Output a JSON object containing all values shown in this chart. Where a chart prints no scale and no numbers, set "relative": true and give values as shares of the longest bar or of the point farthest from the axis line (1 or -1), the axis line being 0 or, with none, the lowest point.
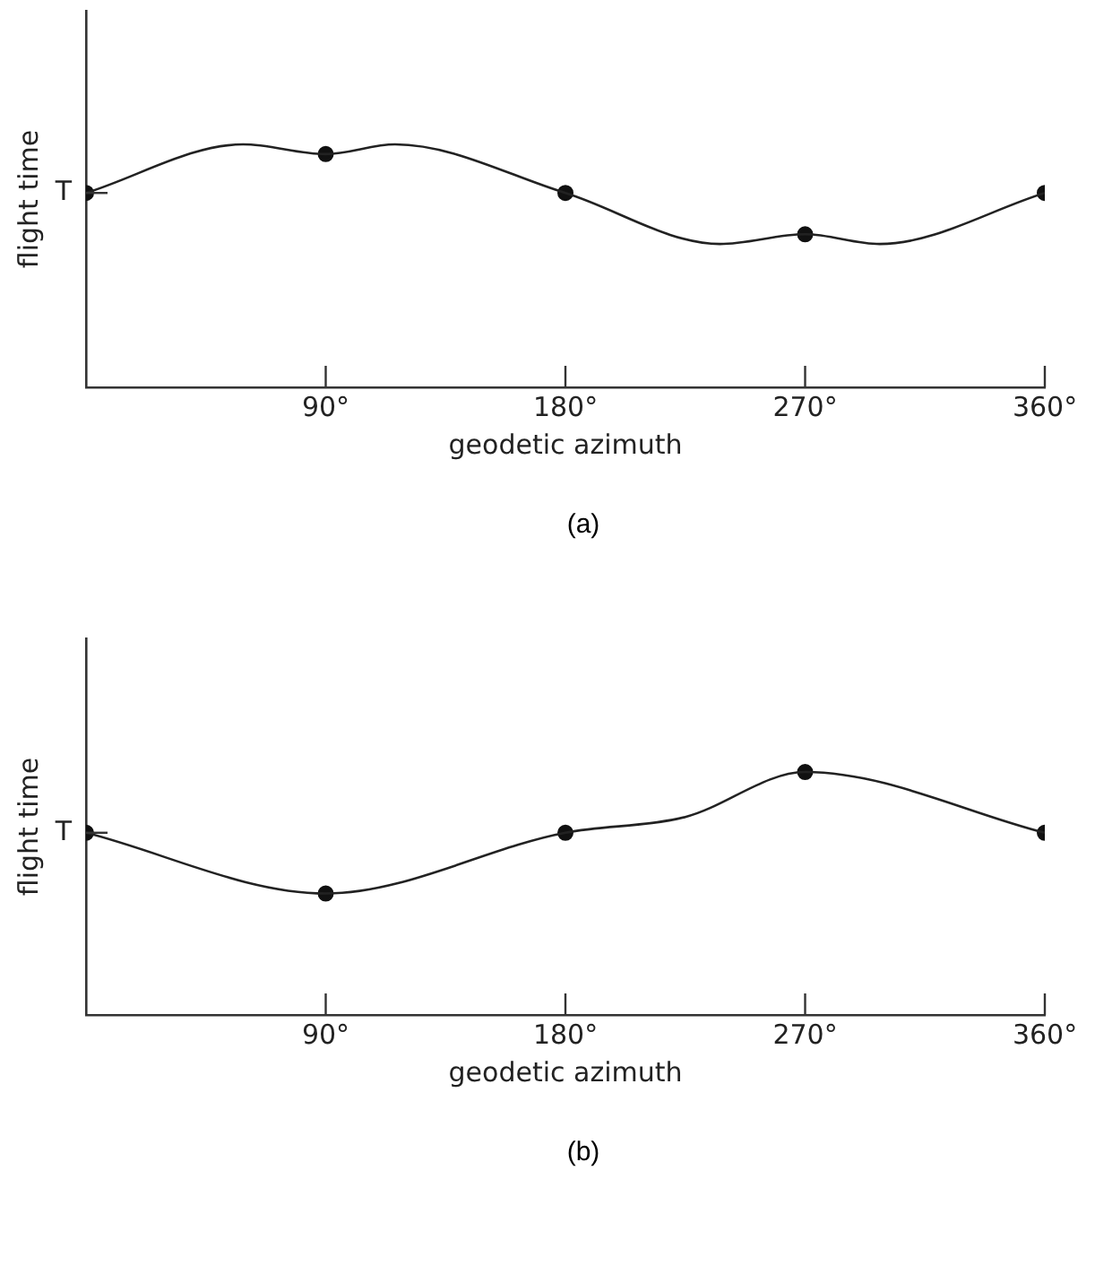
{
  "chart_data": [
    {
      "type": "line",
      "relative": true,
      "xlabel": "geodetic azimuth",
      "ylabel": "flight time",
      "annotations": [
        "(a)",
        "T"
      ],
      "xlim": [
        0,
        360
      ],
      "xticks": [
        {
          "value": 0,
          "label": null
        },
        {
          "value": 90,
          "label": "90°"
        },
        {
          "value": 180,
          "label": "180°"
        },
        {
          "value": 270,
          "label": "270°"
        },
        {
          "value": 360,
          "label": "360°"
        }
      ],
      "grid": false,
      "legend": false,
      "series": [
        {
          "type": "line",
          "color": "#222222",
          "marker": "none",
          "x": [
            0,
            59,
            90,
            116,
            180,
            238,
            270,
            298,
            360
          ],
          "values": [
            0.8,
            1,
            0.96,
            1,
            0.8,
            0.59,
            0.63,
            0.59,
            0.8
          ]
        },
        {
          "type": "scatter",
          "color": "#111111",
          "marker": "circle",
          "x": [
            0,
            90,
            180,
            270,
            360
          ],
          "values": [
            0.8,
            0.96,
            0.8,
            0.63,
            0.8
          ]
        }
      ]
    },
    {
      "type": "line",
      "relative": true,
      "xlabel": "geodetic azimuth",
      "ylabel": "flight time",
      "annotations": [
        "(b)",
        "T"
      ],
      "xlim": [
        0,
        360
      ],
      "xticks": [
        {
          "value": 0,
          "label": null
        },
        {
          "value": 90,
          "label": "90°"
        },
        {
          "value": 180,
          "label": "180°"
        },
        {
          "value": 270,
          "label": "270°"
        },
        {
          "value": 360,
          "label": "360°"
        }
      ],
      "grid": false,
      "legend": false,
      "series": [
        {
          "type": "line",
          "color": "#222222",
          "marker": "none",
          "x": [
            0,
            90,
            180,
            225,
            270,
            360
          ],
          "values": [
            0.75,
            0.5,
            0.75,
            0.815,
            1,
            0.75
          ]
        },
        {
          "type": "scatter",
          "color": "#111111",
          "marker": "circle",
          "x": [
            0,
            90,
            180,
            270,
            360
          ],
          "values": [
            0.75,
            0.5,
            0.75,
            1,
            0.75
          ]
        }
      ]
    }
  ]
}
